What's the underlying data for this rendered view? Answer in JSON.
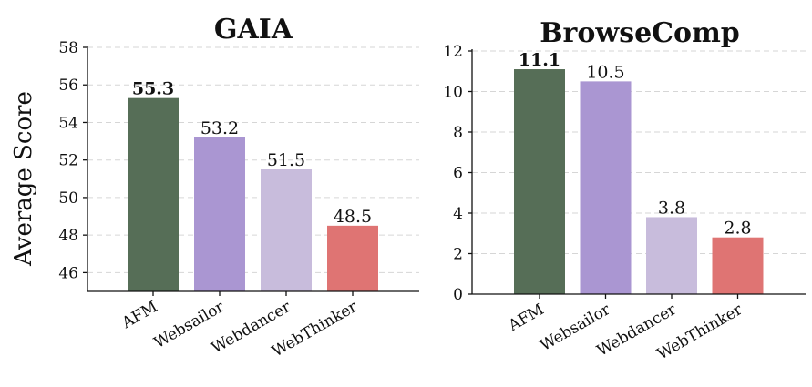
{
  "figure": {
    "ylabel": "Average Score"
  },
  "chart_data": [
    {
      "type": "bar",
      "title": "GAIA",
      "xlabel": "",
      "ylabel": "Average Score",
      "categories": [
        "AFM",
        "Websailor",
        "Webdancer",
        "WebThinker"
      ],
      "values": [
        55.3,
        53.2,
        51.5,
        48.5
      ],
      "value_labels": [
        "55.3",
        "53.2",
        "51.5",
        "48.5"
      ],
      "bold_label_index": 0,
      "colors": [
        "#566e57",
        "#aa96d2",
        "#c8bcdc",
        "#df7473"
      ],
      "ylim": [
        45,
        58
      ],
      "yticks": [
        46,
        48,
        50,
        52,
        54,
        56,
        58
      ],
      "grid": true
    },
    {
      "type": "bar",
      "title": "BrowseComp",
      "xlabel": "",
      "ylabel": "",
      "categories": [
        "AFM",
        "Websailor",
        "Webdancer",
        "WebThinker"
      ],
      "values": [
        11.1,
        10.5,
        3.8,
        2.8
      ],
      "value_labels": [
        "11.1",
        "10.5",
        "3.8",
        "2.8"
      ],
      "bold_label_index": 0,
      "colors": [
        "#566e57",
        "#aa96d2",
        "#c8bcdc",
        "#df7473"
      ],
      "ylim": [
        0,
        12
      ],
      "yticks": [
        0,
        2,
        4,
        6,
        8,
        10,
        12
      ],
      "grid": true
    }
  ]
}
